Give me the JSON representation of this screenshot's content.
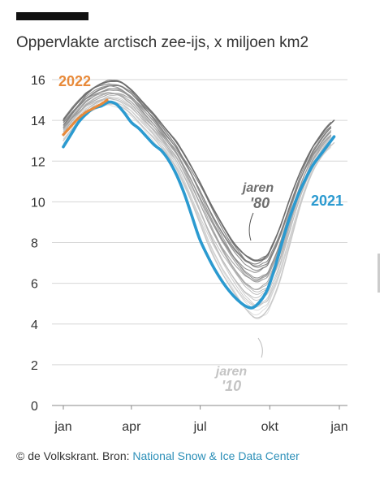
{
  "header": {
    "title": "Oppervlakte arctisch zee-ijs, x miljoen km2"
  },
  "footer": {
    "credit": "© de Volkskrant. Bron: ",
    "source": "National Snow & Ice Data Center"
  },
  "colors": {
    "y2021": "#2b9ad0",
    "y2022": "#e88a3a",
    "eighties": "#6e6e6e",
    "tens": "#c8c8c8",
    "grid": "#d6d6d6"
  },
  "chart_data": {
    "type": "line",
    "title": "Oppervlakte arctisch zee-ijs, x miljoen km2",
    "xlabel": "",
    "ylabel": "",
    "ylim": [
      0,
      16
    ],
    "yticks": [
      "0",
      "2",
      "4",
      "6",
      "8",
      "10",
      "12",
      "14",
      "16"
    ],
    "xticks": [
      "jan",
      "apr",
      "jul",
      "okt",
      "jan"
    ],
    "xtick_days": [
      0,
      90,
      181,
      273,
      365
    ],
    "grid": true,
    "labels": {
      "y2022": "2022",
      "y2021": "2021",
      "eighties_line1": "jaren",
      "eighties_line2": "'80",
      "tens_line1": "jaren",
      "tens_line2": "'10"
    },
    "series": [
      {
        "name": "2021",
        "x": [
          0,
          10,
          20,
          30,
          40,
          50,
          60,
          70,
          80,
          90,
          100,
          110,
          120,
          130,
          140,
          150,
          160,
          170,
          180,
          190,
          200,
          210,
          220,
          230,
          240,
          250,
          260,
          270,
          280,
          290,
          300,
          310,
          320,
          330,
          340,
          350,
          358
        ],
        "values": [
          12.7,
          13.3,
          13.9,
          14.3,
          14.6,
          14.7,
          14.9,
          14.8,
          14.4,
          13.9,
          13.6,
          13.2,
          12.8,
          12.5,
          12.0,
          11.3,
          10.4,
          9.3,
          8.2,
          7.4,
          6.7,
          6.1,
          5.6,
          5.2,
          4.9,
          4.8,
          5.1,
          5.7,
          6.8,
          8.1,
          9.3,
          10.3,
          11.1,
          11.8,
          12.3,
          12.8,
          13.2
        ]
      },
      {
        "name": "2022",
        "x": [
          0,
          10,
          20,
          30,
          40,
          50,
          58
        ],
        "values": [
          13.3,
          13.7,
          14.1,
          14.4,
          14.6,
          14.8,
          15.0
        ]
      },
      {
        "name": "jaren '80",
        "x": [
          0,
          15,
          30,
          45,
          60,
          75,
          90,
          105,
          120,
          135,
          150,
          165,
          180,
          195,
          210,
          225,
          240,
          255,
          270,
          285,
          300,
          315,
          330,
          345,
          358
        ],
        "values": [
          14.0,
          14.7,
          15.3,
          15.7,
          15.9,
          15.9,
          15.5,
          14.9,
          14.3,
          13.6,
          12.9,
          12.0,
          11.0,
          9.9,
          8.9,
          8.0,
          7.4,
          7.1,
          7.4,
          8.6,
          10.2,
          11.6,
          12.7,
          13.5,
          14.0
        ]
      },
      {
        "name": "jaren '10",
        "x": [
          0,
          15,
          30,
          45,
          60,
          75,
          90,
          105,
          120,
          135,
          150,
          165,
          180,
          195,
          210,
          225,
          240,
          255,
          270,
          285,
          300,
          315,
          330,
          345,
          358
        ],
        "values": [
          13.0,
          13.7,
          14.3,
          14.6,
          14.8,
          14.7,
          14.3,
          13.7,
          13.1,
          12.4,
          11.6,
          10.4,
          9.0,
          7.6,
          6.5,
          5.6,
          4.8,
          4.3,
          4.7,
          6.0,
          8.0,
          10.0,
          11.5,
          12.4,
          12.9
        ]
      }
    ]
  }
}
